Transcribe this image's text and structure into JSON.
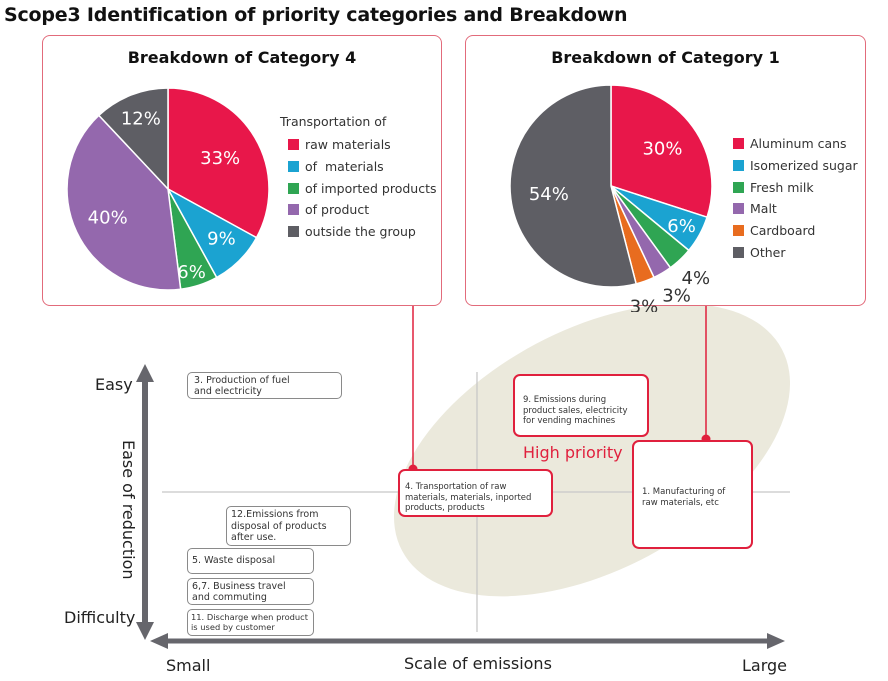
{
  "page_title": "Scope3 Identification of priority categories and Breakdown",
  "chart_data": [
    {
      "type": "pie",
      "title": "Breakdown of Category 4",
      "legend_heading": "Transportation of",
      "legend_position": "right",
      "slices": [
        {
          "label": "raw materials",
          "value": 33,
          "value_label": "33%",
          "color": "#e8174a"
        },
        {
          "label": "of  materials",
          "value": 9,
          "value_label": "9%",
          "color": "#1ba3d1"
        },
        {
          "label": "of imported products",
          "value": 6,
          "value_label": "6%",
          "color": "#2fa553"
        },
        {
          "label": "of product",
          "value": 40,
          "value_label": "40%",
          "color": "#9468ad"
        },
        {
          "label": "outside the group",
          "value": 12,
          "value_label": "12%",
          "color": "#5e5e64"
        }
      ]
    },
    {
      "type": "pie",
      "title": "Breakdown of Category 1",
      "legend_position": "right",
      "slices": [
        {
          "label": "Aluminum cans",
          "value": 30,
          "value_label": "30%",
          "color": "#e8174a"
        },
        {
          "label": "Isomerized sugar",
          "value": 6,
          "value_label": "6%",
          "color": "#1ba3d1"
        },
        {
          "label": "Fresh milk",
          "value": 4,
          "value_label": "4%",
          "color": "#2fa553"
        },
        {
          "label": "Malt",
          "value": 3,
          "value_label": "3%",
          "color": "#9468ad"
        },
        {
          "label": "Cardboard",
          "value": 3,
          "value_label": "3%",
          "color": "#e86c1f"
        },
        {
          "label": "Other",
          "value": 54,
          "value_label": "54%",
          "color": "#5e5e64"
        }
      ]
    }
  ],
  "matrix": {
    "y_axis": {
      "label": "Ease of reduction",
      "top": "Easy",
      "bottom": "Difficulty"
    },
    "x_axis": {
      "label": "Scale of emissions",
      "left": "Small",
      "right": "Large"
    },
    "high_priority_label": "High priority",
    "categories": [
      {
        "id": "cat3",
        "text": "3. Production of fuel and electricity",
        "priority": false
      },
      {
        "id": "cat9",
        "text": "9. Emissions during product sales, electricity for vending machines",
        "priority": true
      },
      {
        "id": "cat4",
        "text": "4. Transportation of raw materials, materials, inported products, products",
        "priority": true
      },
      {
        "id": "cat1",
        "text": "1. Manufacturing of raw materials, etc",
        "priority": true
      },
      {
        "id": "cat12",
        "text": "12.Emissions from disposal of products after use.",
        "priority": false
      },
      {
        "id": "cat5",
        "text": "5. Waste disposal",
        "priority": false
      },
      {
        "id": "cat67",
        "text": "6,7. Business travel and commuting",
        "priority": false
      },
      {
        "id": "cat11",
        "text": "11. Discharge when product is used by customer",
        "priority": false
      }
    ],
    "colors": {
      "accent": "#e0203d",
      "axis": "#66666c",
      "highlight_region": "#ebe9dc",
      "gridline": "#c8c8c8"
    }
  }
}
